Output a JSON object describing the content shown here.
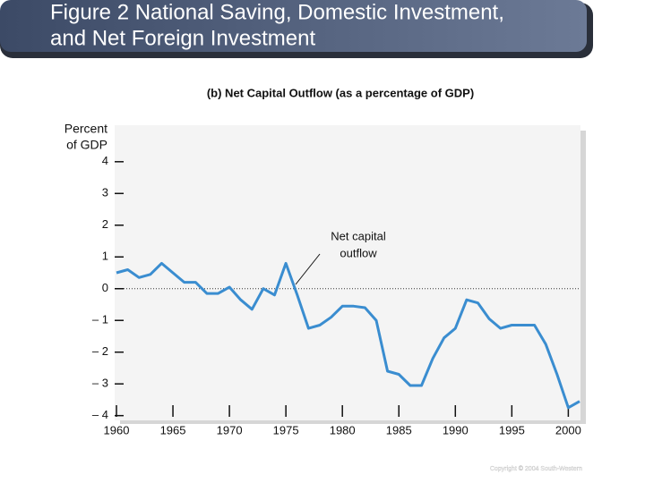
{
  "title_lines": [
    "Figure 2 National Saving, Domestic Investment,",
    "and Net Foreign Investment"
  ],
  "copyright": "Copyright © 2004 South-Western",
  "chart_data": {
    "type": "line",
    "title": "(b) Net Capital Outflow (as a percentage of GDP)",
    "ylabel_lines": [
      "Percent",
      "of GDP"
    ],
    "annotation_lines": [
      "Net capital",
      "outflow"
    ],
    "x": [
      1960,
      1961,
      1962,
      1963,
      1964,
      1965,
      1966,
      1967,
      1968,
      1969,
      1970,
      1971,
      1972,
      1973,
      1974,
      1975,
      1976,
      1977,
      1978,
      1979,
      1980,
      1981,
      1982,
      1983,
      1984,
      1985,
      1986,
      1987,
      1988,
      1989,
      1990,
      1991,
      1992,
      1993,
      1994,
      1995,
      1996,
      1997,
      1998,
      1999,
      2000,
      2001
    ],
    "values": [
      0.5,
      0.6,
      0.35,
      0.45,
      0.8,
      0.5,
      0.2,
      0.2,
      -0.15,
      -0.15,
      0.05,
      -0.35,
      -0.65,
      0.0,
      -0.2,
      0.8,
      -0.2,
      -1.25,
      -1.15,
      -0.9,
      -0.55,
      -0.55,
      -0.6,
      -1.0,
      -2.6,
      -2.7,
      -3.05,
      -3.05,
      -2.2,
      -1.55,
      -1.25,
      -0.35,
      -0.45,
      -0.95,
      -1.25,
      -1.15,
      -1.15,
      -1.15,
      -1.75,
      -2.7,
      -3.75,
      -3.55
    ],
    "color": "#3a8dd0",
    "xlim": [
      1960,
      2001
    ],
    "xticks": [
      1960,
      1965,
      1970,
      1975,
      1980,
      1985,
      1990,
      1995,
      2000
    ],
    "ylim": [
      -4.15,
      5.15
    ],
    "yticks": [
      {
        "value": -4,
        "label": "– 4"
      },
      {
        "value": -3,
        "label": "– 3"
      },
      {
        "value": -2,
        "label": "– 2"
      },
      {
        "value": -1,
        "label": "– 1"
      },
      0,
      1,
      2,
      3,
      4
    ],
    "zero_line": true
  }
}
